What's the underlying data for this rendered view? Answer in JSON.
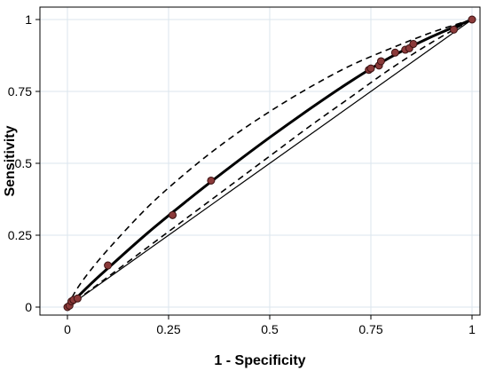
{
  "chart_data": {
    "type": "scatter",
    "title": "",
    "xlabel": "1 - Specificity",
    "ylabel": "Sensitivity",
    "xlim": [
      0,
      1
    ],
    "ylim": [
      0,
      1
    ],
    "x_ticks": [
      0,
      0.25,
      0.5,
      0.75,
      1
    ],
    "y_ticks": [
      0,
      0.25,
      0.5,
      0.75,
      1
    ],
    "x_tick_labels": [
      "0",
      "0.25",
      "0.5",
      "0.75",
      "1"
    ],
    "y_tick_labels": [
      "0",
      "0.25",
      "0.5",
      "0.75",
      "1"
    ],
    "grid": true,
    "points": [
      {
        "x": 0.0,
        "y": 0.0
      },
      {
        "x": 0.005,
        "y": 0.005
      },
      {
        "x": 0.01,
        "y": 0.02
      },
      {
        "x": 0.015,
        "y": 0.025
      },
      {
        "x": 0.025,
        "y": 0.03
      },
      {
        "x": 0.1,
        "y": 0.145
      },
      {
        "x": 0.26,
        "y": 0.32
      },
      {
        "x": 0.355,
        "y": 0.44
      },
      {
        "x": 0.745,
        "y": 0.825
      },
      {
        "x": 0.75,
        "y": 0.83
      },
      {
        "x": 0.77,
        "y": 0.84
      },
      {
        "x": 0.775,
        "y": 0.855
      },
      {
        "x": 0.81,
        "y": 0.885
      },
      {
        "x": 0.835,
        "y": 0.895
      },
      {
        "x": 0.845,
        "y": 0.9
      },
      {
        "x": 0.855,
        "y": 0.915
      },
      {
        "x": 0.955,
        "y": 0.965
      },
      {
        "x": 1.0,
        "y": 1.0
      }
    ],
    "sroc_curve": [
      [
        0,
        0
      ],
      [
        0.05,
        0.07
      ],
      [
        0.1,
        0.135
      ],
      [
        0.2,
        0.26
      ],
      [
        0.3,
        0.375
      ],
      [
        0.4,
        0.485
      ],
      [
        0.5,
        0.59
      ],
      [
        0.6,
        0.69
      ],
      [
        0.7,
        0.785
      ],
      [
        0.8,
        0.87
      ],
      [
        0.9,
        0.94
      ],
      [
        1,
        1
      ]
    ],
    "upper_band": [
      [
        0,
        0
      ],
      [
        0.02,
        0.055
      ],
      [
        0.05,
        0.115
      ],
      [
        0.1,
        0.2
      ],
      [
        0.2,
        0.35
      ],
      [
        0.3,
        0.475
      ],
      [
        0.4,
        0.585
      ],
      [
        0.5,
        0.68
      ],
      [
        0.6,
        0.765
      ],
      [
        0.7,
        0.84
      ],
      [
        0.8,
        0.9
      ],
      [
        0.9,
        0.955
      ],
      [
        1,
        1
      ]
    ],
    "lower_band": [
      [
        0,
        0
      ],
      [
        0.1,
        0.105
      ],
      [
        0.2,
        0.21
      ],
      [
        0.3,
        0.315
      ],
      [
        0.4,
        0.42
      ],
      [
        0.5,
        0.525
      ],
      [
        0.6,
        0.63
      ],
      [
        0.7,
        0.73
      ],
      [
        0.8,
        0.83
      ],
      [
        0.9,
        0.92
      ],
      [
        1,
        1
      ]
    ],
    "reference_line": [
      [
        0,
        0
      ],
      [
        1,
        1
      ]
    ],
    "colors": {
      "point_fill": "#8b3a3a",
      "point_stroke": "#3a1010",
      "curve": "#000000",
      "grid": "#dbe6ee"
    }
  }
}
